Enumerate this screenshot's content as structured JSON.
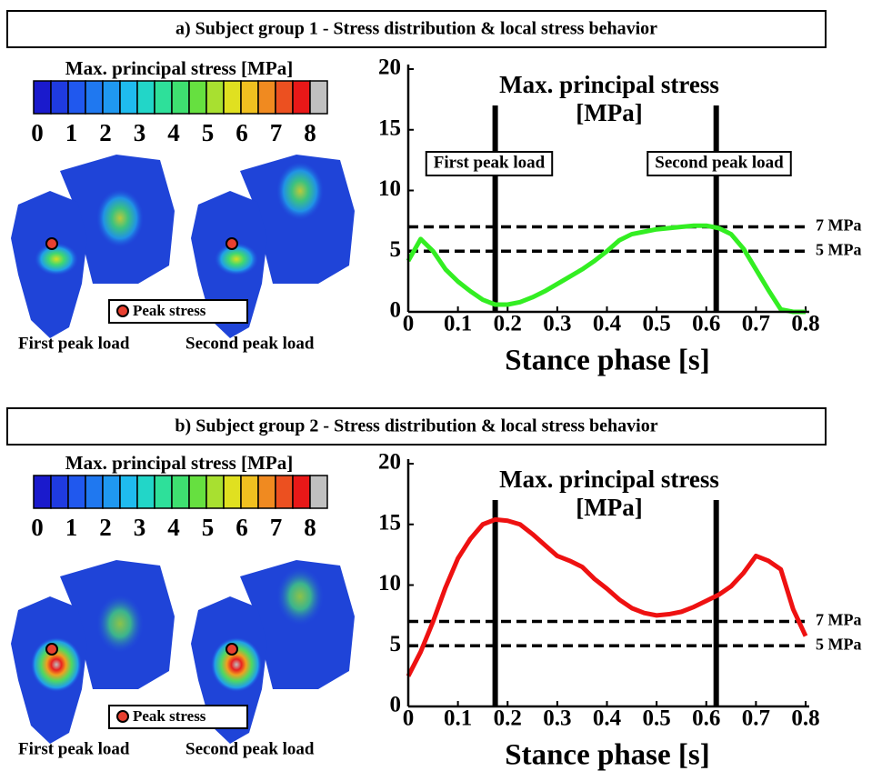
{
  "panels": [
    {
      "title": "a) Subject group 1 - Stress distribution & local stress behavior",
      "colorbar": {
        "title": "Max. principal stress [MPa]",
        "ticks": [
          0,
          1,
          2,
          3,
          4,
          5,
          6,
          7,
          8
        ],
        "colors": [
          "#1a1acc",
          "#1f3be0",
          "#2058ee",
          "#1f78f0",
          "#1f98f0",
          "#1fbbee",
          "#22d6c8",
          "#2ee09a",
          "#3ee070",
          "#66e040",
          "#a8e030",
          "#e0e020",
          "#f0c020",
          "#f08a20",
          "#ec5020",
          "#e81818",
          "#c0c0c0"
        ]
      },
      "captions": [
        "First peak load",
        "Second peak load"
      ],
      "legend": "Peak stress"
    },
    {
      "title": "b) Subject group 2 - Stress distribution & local stress behavior",
      "colorbar": {
        "title": "Max. principal stress [MPa]",
        "ticks": [
          0,
          1,
          2,
          3,
          4,
          5,
          6,
          7,
          8
        ],
        "colors": [
          "#1a1acc",
          "#1f3be0",
          "#2058ee",
          "#1f78f0",
          "#1f98f0",
          "#1fbbee",
          "#22d6c8",
          "#2ee09a",
          "#3ee070",
          "#66e040",
          "#a8e030",
          "#e0e020",
          "#f0c020",
          "#f08a20",
          "#ec5020",
          "#e81818",
          "#c0c0c0"
        ]
      },
      "captions": [
        "First peak load",
        "Second peak load"
      ],
      "legend": "Peak stress"
    }
  ],
  "chart_data": [
    {
      "type": "line",
      "title": [
        "Max. principal stress",
        "[MPa]"
      ],
      "x_label": "Stance phase [s]",
      "x": [
        0,
        0.025,
        0.05,
        0.075,
        0.1,
        0.125,
        0.15,
        0.175,
        0.2,
        0.225,
        0.25,
        0.275,
        0.3,
        0.325,
        0.35,
        0.375,
        0.4,
        0.425,
        0.45,
        0.475,
        0.5,
        0.525,
        0.55,
        0.575,
        0.6,
        0.625,
        0.65,
        0.675,
        0.7,
        0.725,
        0.75,
        0.775,
        0.8
      ],
      "series": [
        {
          "color": "#33ee22",
          "values": [
            4.2,
            6.0,
            5.0,
            3.5,
            2.5,
            1.7,
            1.0,
            0.6,
            0.6,
            0.8,
            1.2,
            1.7,
            2.3,
            2.9,
            3.5,
            4.2,
            5.0,
            5.9,
            6.4,
            6.6,
            6.8,
            6.9,
            7.0,
            7.1,
            7.1,
            6.9,
            6.4,
            5.2,
            3.5,
            1.8,
            0.2,
            0,
            0
          ]
        }
      ],
      "xlim": [
        0,
        0.8
      ],
      "ylim": [
        0,
        20
      ],
      "xticks": [
        0,
        0.1,
        0.2,
        0.3,
        0.4,
        0.5,
        0.6,
        0.7,
        0.8
      ],
      "yticks": [
        0,
        5,
        10,
        15,
        20
      ],
      "reference_lines": [
        {
          "value": 7,
          "label": "7 MPa"
        },
        {
          "value": 5,
          "label": "5 MPa"
        }
      ],
      "vertical_lines": [
        {
          "value": 0.175,
          "label": "First peak load"
        },
        {
          "value": 0.62,
          "label": "Second peak load"
        }
      ]
    },
    {
      "type": "line",
      "title": [
        "Max. principal stress",
        "[MPa]"
      ],
      "x_label": "Stance phase [s]",
      "x": [
        0,
        0.025,
        0.05,
        0.075,
        0.1,
        0.125,
        0.15,
        0.175,
        0.2,
        0.225,
        0.25,
        0.275,
        0.3,
        0.325,
        0.35,
        0.375,
        0.4,
        0.425,
        0.45,
        0.475,
        0.5,
        0.525,
        0.55,
        0.575,
        0.6,
        0.625,
        0.65,
        0.675,
        0.7,
        0.725,
        0.75,
        0.775,
        0.8
      ],
      "series": [
        {
          "color": "#ee1111",
          "values": [
            2.5,
            4.5,
            7.0,
            9.8,
            12.2,
            13.8,
            15.0,
            15.4,
            15.3,
            15.0,
            14.2,
            13.3,
            12.4,
            12.0,
            11.5,
            10.5,
            9.7,
            8.8,
            8.1,
            7.7,
            7.5,
            7.6,
            7.8,
            8.2,
            8.7,
            9.2,
            9.9,
            11.0,
            12.4,
            12.0,
            11.3,
            8.0,
            5.8
          ]
        }
      ],
      "xlim": [
        0,
        0.8
      ],
      "ylim": [
        0,
        20
      ],
      "xticks": [
        0,
        0.1,
        0.2,
        0.3,
        0.4,
        0.5,
        0.6,
        0.7,
        0.8
      ],
      "yticks": [
        0,
        5,
        10,
        15,
        20
      ],
      "reference_lines": [
        {
          "value": 7,
          "label": "7 MPa"
        },
        {
          "value": 5,
          "label": "5 MPa"
        }
      ],
      "vertical_lines": [
        {
          "value": 0.175
        },
        {
          "value": 0.62
        }
      ]
    }
  ]
}
